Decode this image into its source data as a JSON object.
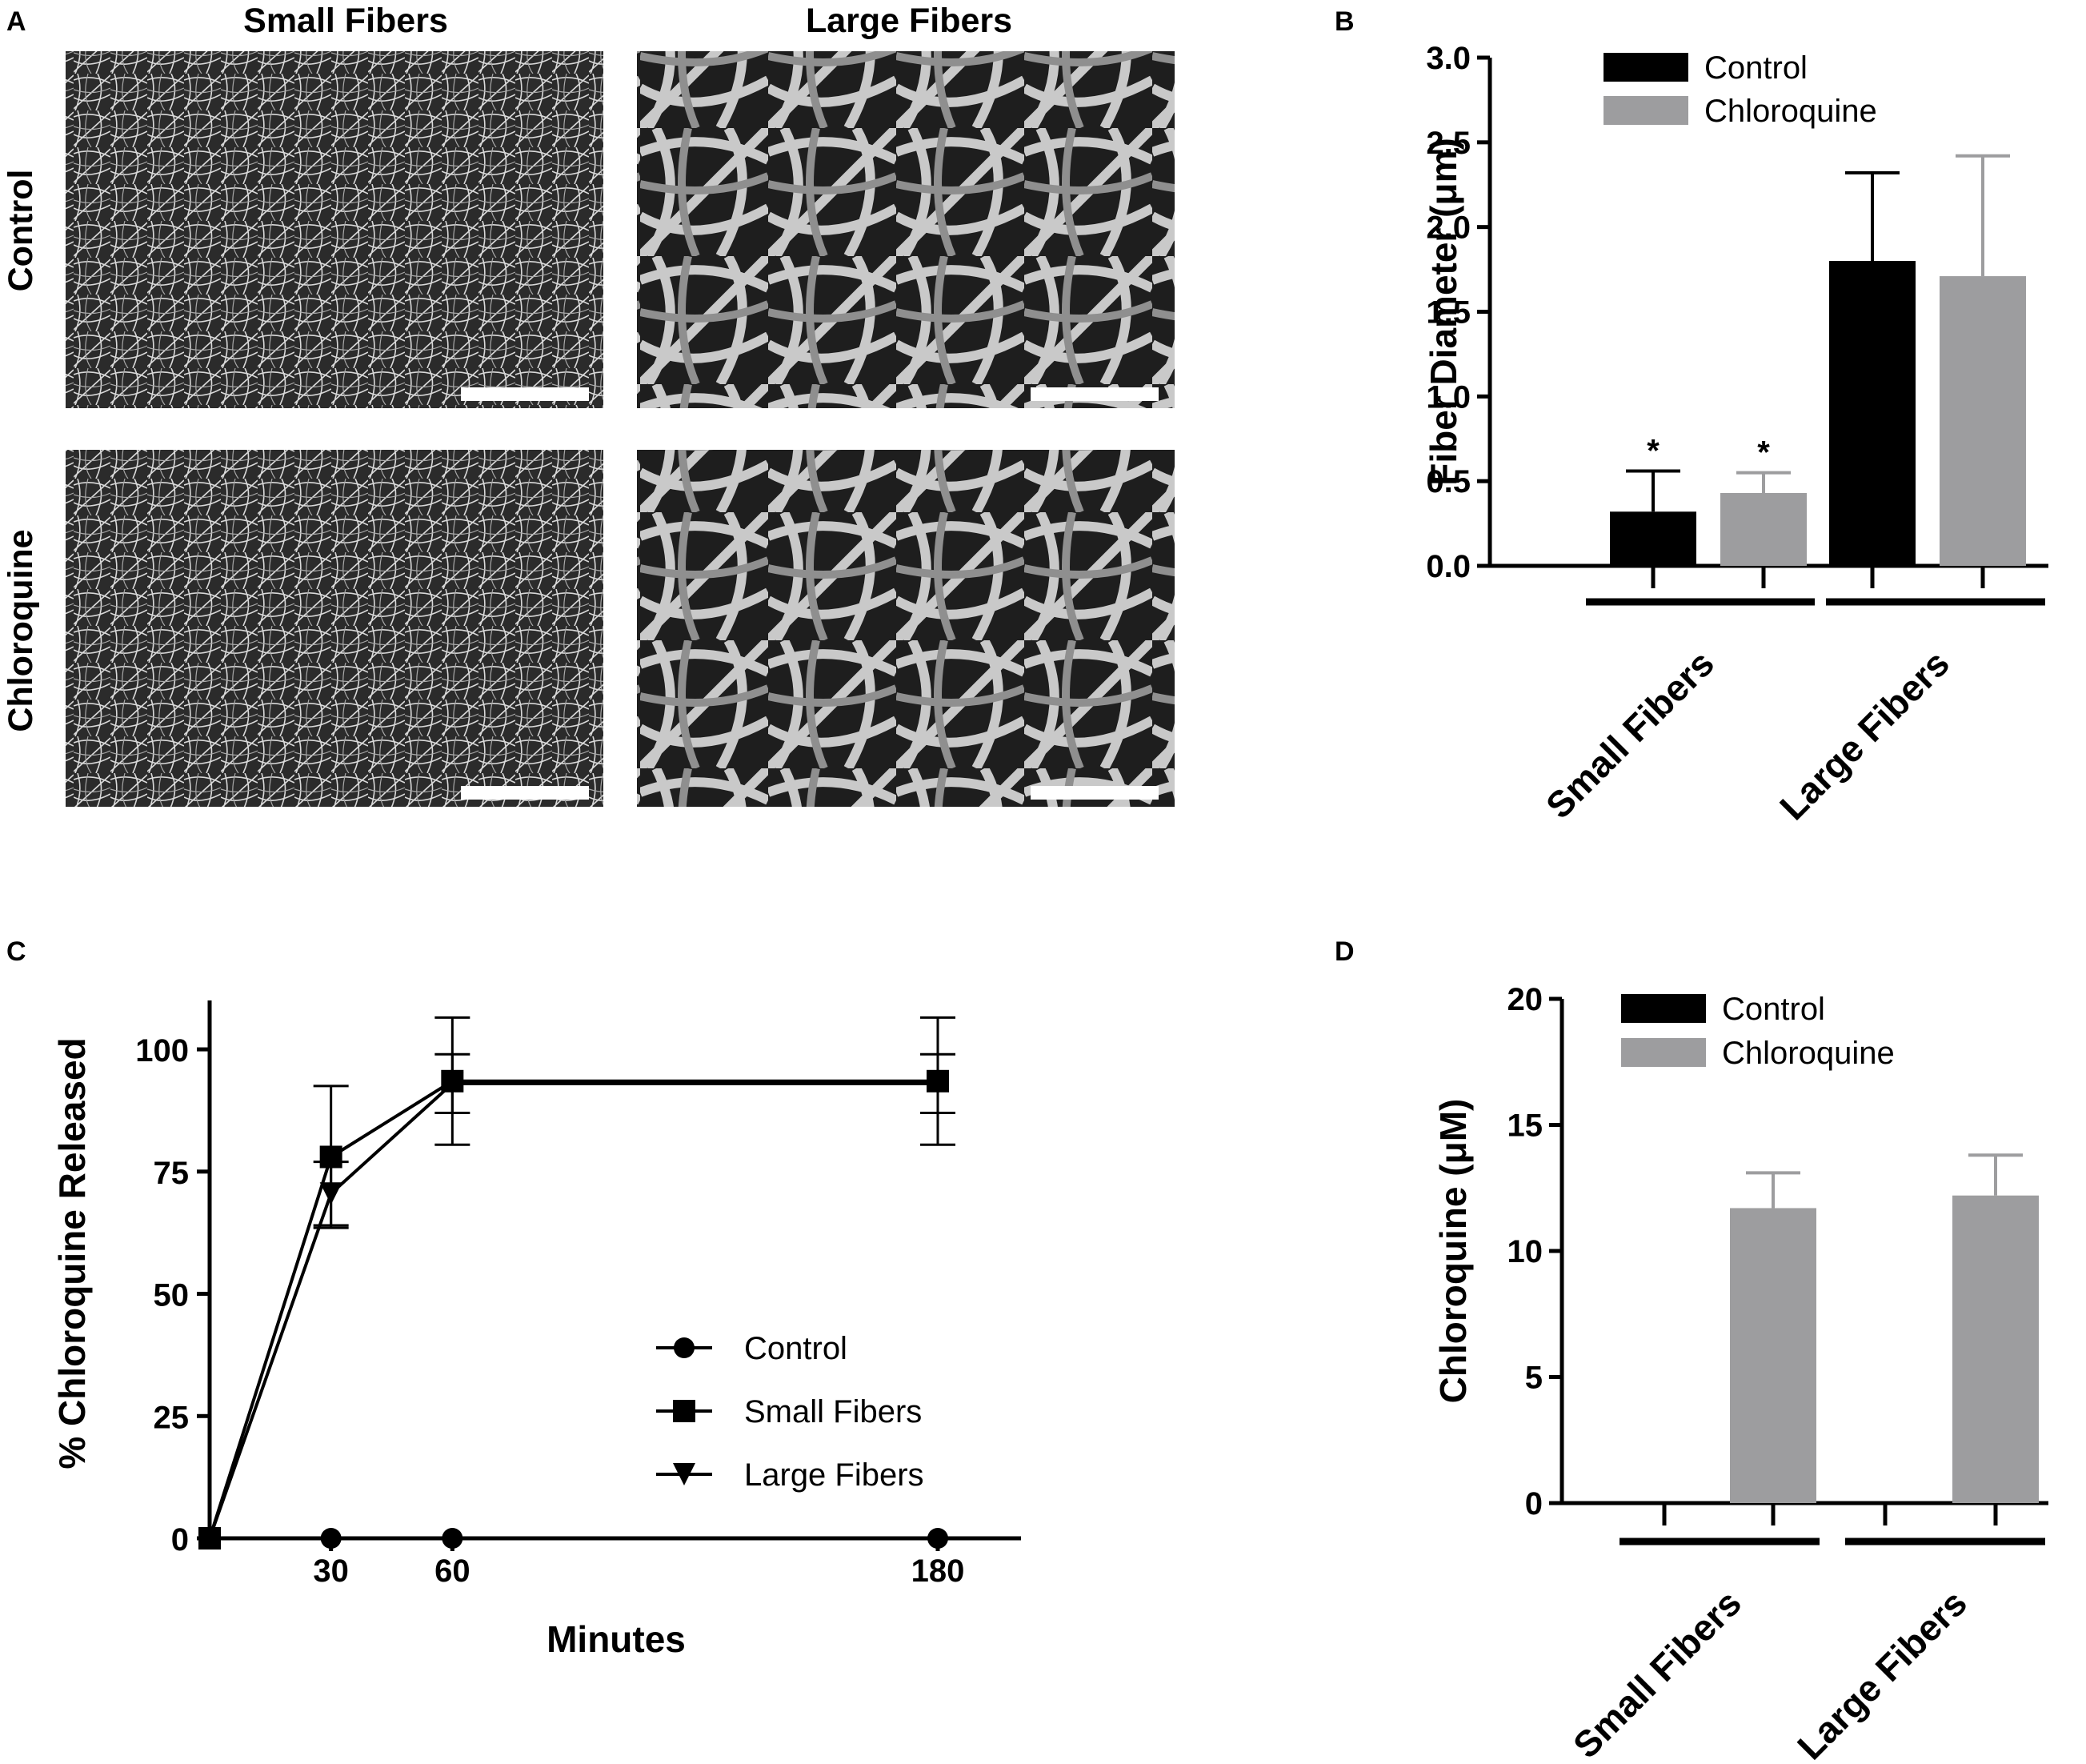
{
  "panels": {
    "A": {
      "label": "A",
      "col_headers": [
        "Small Fibers",
        "Large Fibers"
      ],
      "row_labels": [
        "Control",
        "Chloroquine"
      ]
    },
    "B": {
      "label": "B"
    },
    "C": {
      "label": "C"
    },
    "D": {
      "label": "D"
    }
  },
  "colors": {
    "control": "#000000",
    "chloroquine": "#9d9d9f"
  },
  "image_tiles": [
    {
      "name": "sem-control-small",
      "description": "SEM micrograph, thin dense fibers"
    },
    {
      "name": "sem-control-large",
      "description": "SEM micrograph, thick fibers"
    },
    {
      "name": "sem-chloroquine-small",
      "description": "SEM micrograph, thin dense fibers"
    },
    {
      "name": "sem-chloroquine-large",
      "description": "SEM micrograph, thick fibers"
    }
  ],
  "chart_data": [
    {
      "id": "B",
      "type": "bar",
      "categories": [
        "Small Fibers",
        "Large Fibers"
      ],
      "series": [
        {
          "name": "Control",
          "color": "#000000",
          "values": [
            0.32,
            1.8
          ],
          "error": [
            0.24,
            0.52
          ],
          "annot": [
            "*",
            ""
          ]
        },
        {
          "name": "Chloroquine",
          "color": "#9d9d9f",
          "values": [
            0.43,
            1.71
          ],
          "error": [
            0.12,
            0.71
          ],
          "annot": [
            "*",
            ""
          ]
        }
      ],
      "ylabel": "Fiber Diameter (μm)",
      "ylim": [
        0,
        3.0
      ],
      "yticks": [
        "0.0",
        "0.5",
        "1.0",
        "1.5",
        "2.0",
        "2.5",
        "3.0"
      ],
      "legend": "top-left"
    },
    {
      "id": "C",
      "type": "line",
      "x": [
        0,
        30,
        60,
        180
      ],
      "xticks": [
        "30",
        "60",
        "180"
      ],
      "series": [
        {
          "name": "Control",
          "marker": "circle",
          "values": [
            0,
            0,
            0,
            0
          ],
          "error": [
            0,
            0,
            0,
            0
          ]
        },
        {
          "name": "Small Fibers",
          "marker": "square",
          "values": [
            0,
            78,
            93.5,
            93.5
          ],
          "error": [
            0,
            14.5,
            13,
            13
          ]
        },
        {
          "name": "Large Fibers",
          "marker": "triangle-down",
          "values": [
            0,
            70.5,
            93,
            93
          ],
          "error": [
            0,
            6.5,
            6,
            6
          ]
        }
      ],
      "xlabel": "Minutes",
      "ylabel": "% Chloroquine Released",
      "ylim": [
        0,
        110
      ],
      "yticks": [
        "0",
        "25",
        "50",
        "75",
        "100"
      ],
      "legend": "center-right"
    },
    {
      "id": "D",
      "type": "bar",
      "categories": [
        "Small Fibers",
        "Large Fibers"
      ],
      "series": [
        {
          "name": "Control",
          "color": "#000000",
          "values": [
            0,
            0
          ],
          "error": [
            0,
            0
          ]
        },
        {
          "name": "Chloroquine",
          "color": "#9d9d9f",
          "values": [
            11.7,
            12.2
          ],
          "error": [
            1.4,
            1.6
          ]
        }
      ],
      "ylabel": "Chloroquine (μM)",
      "ylim": [
        0,
        20
      ],
      "yticks": [
        "0",
        "5",
        "10",
        "15",
        "20"
      ],
      "legend": "top-left"
    }
  ]
}
